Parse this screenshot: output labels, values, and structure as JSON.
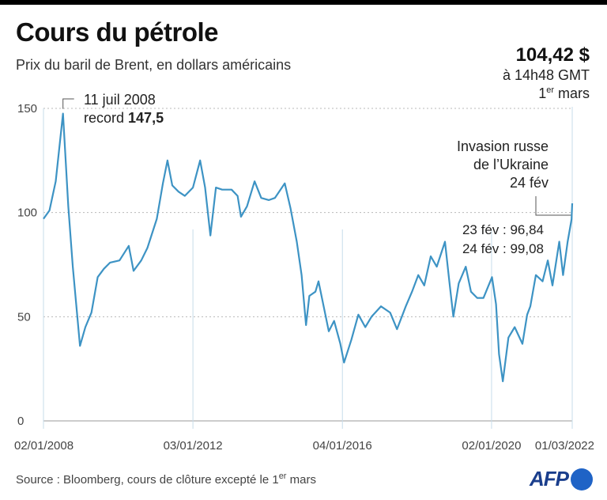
{
  "header": {
    "title": "Cours du pétrole",
    "subtitle": "Prix du baril de Brent, en dollars américains"
  },
  "latest": {
    "value": "104,42 $",
    "time": "à 14h48 GMT",
    "date_day": "1",
    "date_sup": "er",
    "date_month": "mars"
  },
  "annotations": {
    "record_line1": "11 juil 2008",
    "record_prefix": "record ",
    "record_value": "147,5",
    "invasion_line1": "Invasion russe",
    "invasion_line2": "de l’Ukraine",
    "invasion_line3": "24 fév",
    "feb23": "23 fév : 96,84",
    "feb24": "24 fév : 99,08"
  },
  "footer": {
    "source_prefix": "Source : Bloomberg, cours de clôture excepté le 1",
    "source_sup": "er",
    "source_suffix": " mars",
    "logo": "AFP"
  },
  "colors": {
    "line": "#3d93c4",
    "grid": "#b8b8b8",
    "afp_blue": "#1f63c6"
  },
  "chart_data": {
    "type": "line",
    "title": "Cours du pétrole",
    "subtitle": "Prix du baril de Brent, en dollars américains",
    "x_ticks": [
      "02/01/2008",
      "03/01/2012",
      "04/01/2016",
      "02/01/2020",
      "01/03/2022"
    ],
    "y_ticks": [
      0,
      50,
      100,
      150
    ],
    "ylim": [
      0,
      150
    ],
    "xlim": [
      "2008-01-02",
      "2022-03-01"
    ],
    "grid": "horizontal dotted",
    "series": [
      {
        "x": [
          "2008-01-02",
          "2008-03-01",
          "2008-05-01",
          "2008-07-11",
          "2008-09-01",
          "2008-10-15",
          "2008-12-24",
          "2009-02-15",
          "2009-04-15",
          "2009-06-15",
          "2009-08-15",
          "2009-10-15",
          "2010-01-15",
          "2010-04-15",
          "2010-06-01",
          "2010-08-15",
          "2010-10-15",
          "2011-01-15",
          "2011-03-15",
          "2011-04-29",
          "2011-06-15",
          "2011-08-15",
          "2011-10-15",
          "2012-01-03",
          "2012-03-13",
          "2012-05-01",
          "2012-06-22",
          "2012-08-15",
          "2012-10-15",
          "2013-01-15",
          "2013-03-15",
          "2013-04-17",
          "2013-06-15",
          "2013-08-28",
          "2013-11-01",
          "2014-01-15",
          "2014-03-15",
          "2014-06-19",
          "2014-08-15",
          "2014-10-15",
          "2014-12-01",
          "2015-01-13",
          "2015-02-15",
          "2015-04-15",
          "2015-05-15",
          "2015-08-24",
          "2015-10-15",
          "2015-12-15",
          "2016-01-20",
          "2016-04-01",
          "2016-06-08",
          "2016-08-15",
          "2016-10-15",
          "2017-01-15",
          "2017-04-15",
          "2017-06-21",
          "2017-09-15",
          "2017-11-15",
          "2018-01-15",
          "2018-03-15",
          "2018-05-17",
          "2018-07-15",
          "2018-10-03",
          "2018-11-15",
          "2018-12-24",
          "2019-02-15",
          "2019-04-25",
          "2019-06-15",
          "2019-08-15",
          "2019-10-15",
          "2020-01-06",
          "2020-02-15",
          "2020-03-15",
          "2020-04-21",
          "2020-06-15",
          "2020-08-15",
          "2020-10-30",
          "2020-12-15",
          "2021-01-15",
          "2021-03-10",
          "2021-05-15",
          "2021-07-05",
          "2021-08-20",
          "2021-10-25",
          "2021-12-01",
          "2022-01-15",
          "2022-02-23",
          "2022-02-24",
          "2022-03-01"
        ],
        "values": [
          97,
          101,
          115,
          147.5,
          103,
          74,
          36,
          45,
          52,
          69,
          73,
          76,
          77,
          84,
          72,
          77,
          83,
          97,
          114,
          125,
          113,
          110,
          108,
          112,
          125,
          112,
          89,
          112,
          111,
          111,
          108,
          98,
          103,
          115,
          107,
          106,
          107,
          114,
          102,
          86,
          70,
          46,
          60,
          62,
          67,
          43,
          48,
          37,
          28,
          39,
          51,
          45,
          50,
          55,
          52,
          44,
          55,
          62,
          70,
          65,
          79,
          74,
          86,
          67,
          50,
          66,
          74,
          62,
          59,
          59,
          69,
          56,
          32,
          19,
          40,
          45,
          37,
          51,
          55,
          70,
          67,
          77,
          65,
          86,
          70,
          86,
          96.84,
          99.08,
          104.42
        ]
      }
    ]
  }
}
